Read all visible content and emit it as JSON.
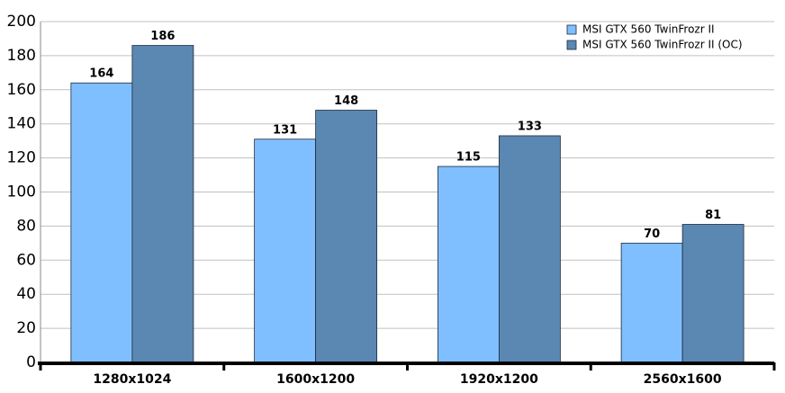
{
  "chart_data": {
    "type": "bar",
    "categories": [
      "1280x1024",
      "1600x1200",
      "1920x1200",
      "2560x1600"
    ],
    "series": [
      {
        "name": "MSI GTX 560 TwinFrozr II",
        "color": "#80bfff",
        "values": [
          164,
          131,
          115,
          70
        ]
      },
      {
        "name": "MSI GTX 560 TwinFrozr II (OC)",
        "color": "#5b87b3",
        "values": [
          186,
          148,
          133,
          81
        ]
      }
    ],
    "ylim": [
      0,
      200
    ],
    "yticks": [
      0,
      20,
      40,
      60,
      80,
      100,
      120,
      140,
      160,
      180,
      200
    ],
    "grid": true,
    "legend": "top-right"
  }
}
